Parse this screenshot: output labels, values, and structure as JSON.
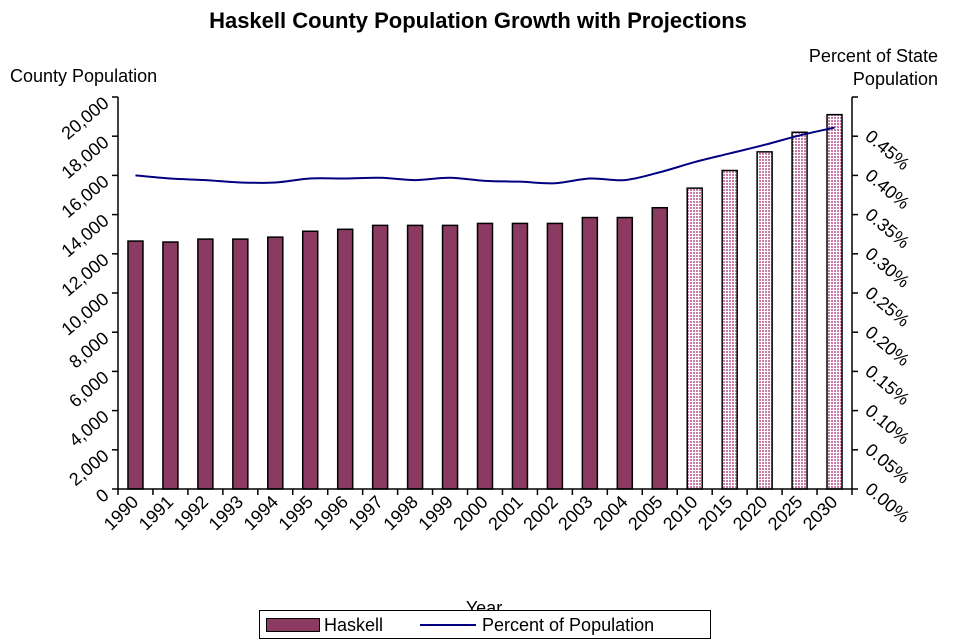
{
  "chart_data": {
    "type": "bar",
    "title": "Haskell County Population Growth with Projections",
    "xlabel": "Year",
    "ylabel": "County Population",
    "y2label_line1": "Percent of State",
    "y2label_line2": "Population",
    "categories": [
      "1990",
      "1991",
      "1992",
      "1993",
      "1994",
      "1995",
      "1996",
      "1997",
      "1998",
      "1999",
      "2000",
      "2001",
      "2002",
      "2003",
      "2004",
      "2005",
      "2010",
      "2015",
      "2020",
      "2025",
      "2030"
    ],
    "ylim": [
      0,
      20000
    ],
    "y_ticks": [
      "0",
      "2,000",
      "4,000",
      "6,000",
      "8,000",
      "10,000",
      "12,000",
      "14,000",
      "16,000",
      "18,000",
      "20,000"
    ],
    "y2lim": [
      0,
      0.5
    ],
    "y2_ticks": [
      "0.00%",
      "0.05%",
      "0.10%",
      "0.15%",
      "0.20%",
      "0.25%",
      "0.30%",
      "0.35%",
      "0.40%",
      "0.45%"
    ],
    "projection_start_index": 16,
    "series": [
      {
        "name": "Haskell",
        "kind": "bar",
        "color": "#8B3A62",
        "values": [
          12650,
          12600,
          12750,
          12750,
          12850,
          13150,
          13250,
          13450,
          13450,
          13450,
          13550,
          13550,
          13550,
          13850,
          13850,
          14350,
          15350,
          16250,
          17200,
          18200,
          19100
        ]
      },
      {
        "name": "Percent of Population",
        "kind": "line",
        "axis": "y2",
        "color": "#000080",
        "values": [
          0.4,
          0.396,
          0.394,
          0.391,
          0.391,
          0.396,
          0.396,
          0.397,
          0.394,
          0.397,
          0.393,
          0.392,
          0.39,
          0.396,
          0.394,
          0.404,
          0.417,
          0.428,
          0.439,
          0.451,
          0.461
        ]
      }
    ],
    "legend_position": "bottom",
    "grid": false
  },
  "colors": {
    "bar_fill": "#8B3A62",
    "projection_fill": "#D8A8C8",
    "line": "#000080",
    "axis": "#000000"
  }
}
